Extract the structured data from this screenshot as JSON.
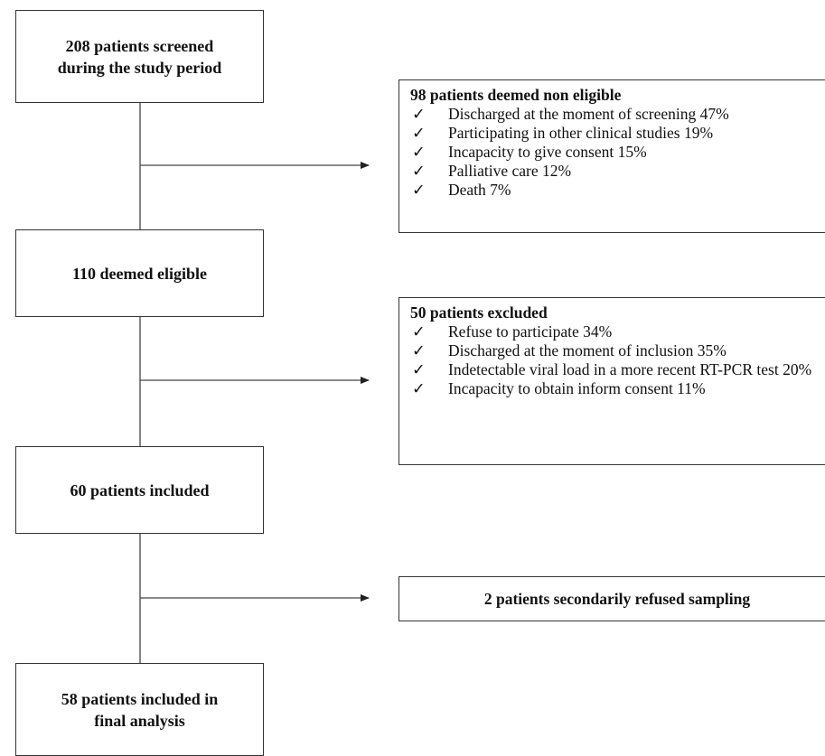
{
  "flow": {
    "screened": "208 patients screened\nduring the study period",
    "eligible": "110 deemed eligible",
    "included": "60 patients included",
    "final": "58 patients included in\nfinal analysis"
  },
  "non_eligible": {
    "title": "98 patients deemed non eligible",
    "check_glyph": "✓",
    "items": [
      "Discharged at the moment of screening 47%",
      "Participating in other clinical studies 19%",
      "Incapacity to give consent 15%",
      "Palliative care 12%",
      "Death 7%"
    ]
  },
  "excluded": {
    "title": "50 patients excluded",
    "check_glyph": "✓",
    "items": [
      "Refuse to participate 34%",
      "Discharged at the moment of inclusion 35%",
      "Indetectable viral load in a more recent RT-PCR test 20%",
      "Incapacity to obtain inform consent 11%"
    ]
  },
  "refused": {
    "label": "2 patients secondarily refused sampling"
  }
}
